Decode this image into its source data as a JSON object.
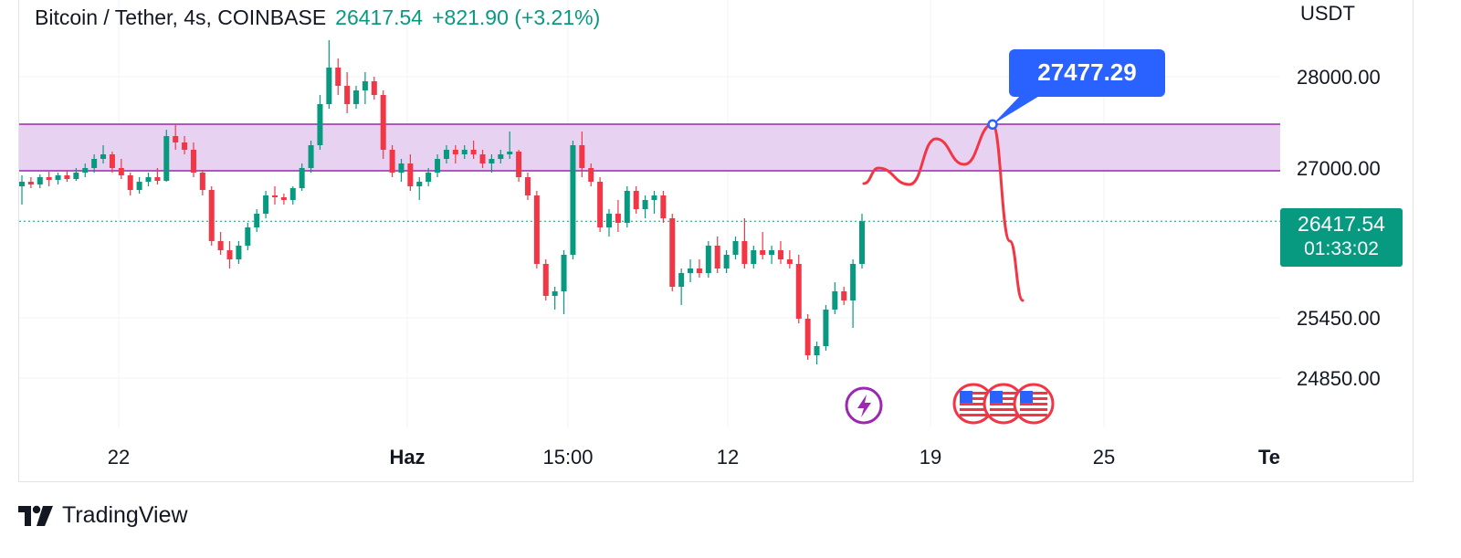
{
  "header": {
    "symbol": "Bitcoin / Tether, 4s, COINBASE",
    "last": "26417.54",
    "change": "+821.90 (+3.21%)"
  },
  "price_axis": {
    "unit": "USDT",
    "current_price": "26417.54",
    "countdown": "01:33:02"
  },
  "annotation": {
    "target_label": "27477.29"
  },
  "brand": {
    "name": "TradingView"
  },
  "colors": {
    "up": "#089981",
    "down": "#f23645",
    "zone_fill": "#e6cdf0",
    "zone_line": "#9c27b0",
    "projection": "#f23645",
    "callout": "#2962ff",
    "grid": "#f0f3fa"
  },
  "icons": [
    "lightning-icon",
    "us-flag-icon"
  ],
  "chart_data": {
    "type": "candlestick",
    "title": "Bitcoin / Tether, 4s, COINBASE",
    "ylabel": "USDT",
    "x_ticks": [
      "22",
      "Haz",
      "15:00",
      "12",
      "19",
      "25",
      "Te"
    ],
    "y_ticks": [
      28000.0,
      27000.0,
      25450.0,
      24850.0
    ],
    "ylim": [
      24200,
      28700
    ],
    "current_price": 26417.54,
    "zone": {
      "low": 26970,
      "high": 27480
    },
    "projection": {
      "points": [
        [
          0,
          26830
        ],
        [
          1,
          27000
        ],
        [
          2,
          26820
        ],
        [
          3,
          27320
        ],
        [
          4,
          27040
        ],
        [
          5,
          27477.29
        ],
        [
          6,
          26200
        ],
        [
          7,
          25550
        ]
      ],
      "target": 27477.29
    },
    "candles": [
      [
        26800,
        26920,
        26600,
        26850
      ],
      [
        26850,
        26900,
        26780,
        26820
      ],
      [
        26820,
        26930,
        26780,
        26900
      ],
      [
        26900,
        26960,
        26800,
        26870
      ],
      [
        26870,
        26950,
        26820,
        26920
      ],
      [
        26920,
        26980,
        26850,
        26880
      ],
      [
        26880,
        27000,
        26860,
        26950
      ],
      [
        26950,
        27050,
        26900,
        27000
      ],
      [
        27000,
        27150,
        26950,
        27100
      ],
      [
        27100,
        27250,
        27050,
        27150
      ],
      [
        27150,
        27180,
        26950,
        27000
      ],
      [
        27000,
        27100,
        26880,
        26920
      ],
      [
        26920,
        26950,
        26700,
        26760
      ],
      [
        26760,
        26900,
        26720,
        26850
      ],
      [
        26850,
        26950,
        26800,
        26900
      ],
      [
        26900,
        27000,
        26820,
        26860
      ],
      [
        26860,
        27420,
        26850,
        27350
      ],
      [
        27350,
        27480,
        27200,
        27280
      ],
      [
        27280,
        27350,
        27150,
        27200
      ],
      [
        27200,
        27280,
        26900,
        26950
      ],
      [
        26950,
        26980,
        26700,
        26760
      ],
      [
        26760,
        26800,
        26150,
        26200
      ],
      [
        26200,
        26300,
        26050,
        26100
      ],
      [
        26100,
        26200,
        25900,
        26000
      ],
      [
        26000,
        26200,
        25950,
        26150
      ],
      [
        26150,
        26400,
        26100,
        26350
      ],
      [
        26350,
        26550,
        26300,
        26500
      ],
      [
        26500,
        26750,
        26450,
        26700
      ],
      [
        26700,
        26800,
        26600,
        26680
      ],
      [
        26680,
        26720,
        26600,
        26650
      ],
      [
        26650,
        26800,
        26600,
        26780
      ],
      [
        26780,
        27050,
        26750,
        27000
      ],
      [
        27000,
        27300,
        26950,
        27250
      ],
      [
        27250,
        27800,
        27200,
        27700
      ],
      [
        27700,
        28400,
        27650,
        28100
      ],
      [
        28100,
        28200,
        27800,
        27900
      ],
      [
        27900,
        28050,
        27600,
        27700
      ],
      [
        27700,
        27900,
        27650,
        27850
      ],
      [
        27850,
        28050,
        27700,
        27950
      ],
      [
        27950,
        28000,
        27750,
        27800
      ],
      [
        27800,
        27850,
        27100,
        27200
      ],
      [
        27200,
        27250,
        26900,
        26950
      ],
      [
        26950,
        27100,
        26850,
        27050
      ],
      [
        27050,
        27150,
        26750,
        26800
      ],
      [
        26800,
        26900,
        26650,
        26850
      ],
      [
        26850,
        27000,
        26800,
        26950
      ],
      [
        26950,
        27150,
        26900,
        27100
      ],
      [
        27100,
        27250,
        27050,
        27200
      ],
      [
        27200,
        27250,
        27050,
        27150
      ],
      [
        27150,
        27250,
        27100,
        27200
      ],
      [
        27200,
        27300,
        27100,
        27150
      ],
      [
        27150,
        27200,
        27000,
        27050
      ],
      [
        27050,
        27150,
        26950,
        27100
      ],
      [
        27100,
        27200,
        27050,
        27150
      ],
      [
        27150,
        27400,
        27100,
        27180
      ],
      [
        27180,
        27200,
        26850,
        26900
      ],
      [
        26900,
        26950,
        26650,
        26700
      ],
      [
        26700,
        26750,
        25900,
        25950
      ],
      [
        25950,
        26000,
        25550,
        25600
      ],
      [
        25600,
        25700,
        25450,
        25650
      ],
      [
        25650,
        26100,
        25400,
        26050
      ],
      [
        26050,
        27300,
        26000,
        27250
      ],
      [
        27250,
        27400,
        26900,
        27000
      ],
      [
        27000,
        27050,
        26800,
        26850
      ],
      [
        26850,
        26900,
        26300,
        26350
      ],
      [
        26350,
        26550,
        26250,
        26500
      ],
      [
        26500,
        26650,
        26300,
        26400
      ],
      [
        26400,
        26800,
        26350,
        26750
      ],
      [
        26750,
        26800,
        26500,
        26550
      ],
      [
        26550,
        26700,
        26450,
        26650
      ],
      [
        26650,
        26750,
        26500,
        26700
      ],
      [
        26700,
        26750,
        26400,
        26450
      ],
      [
        26450,
        26500,
        25650,
        25700
      ],
      [
        25700,
        25900,
        25500,
        25850
      ],
      [
        25850,
        26000,
        25750,
        25900
      ],
      [
        25900,
        26000,
        25800,
        25850
      ],
      [
        25850,
        26200,
        25800,
        26150
      ],
      [
        26150,
        26250,
        25850,
        25900
      ],
      [
        25900,
        26100,
        25850,
        26050
      ],
      [
        26050,
        26250,
        26000,
        26200
      ],
      [
        26200,
        26450,
        25900,
        25950
      ],
      [
        25950,
        26150,
        25900,
        26100
      ],
      [
        26100,
        26300,
        26000,
        26050
      ],
      [
        26050,
        26150,
        25950,
        26100
      ],
      [
        26100,
        26200,
        25950,
        26000
      ],
      [
        26000,
        26100,
        25900,
        25950
      ],
      [
        25950,
        26050,
        25300,
        25350
      ],
      [
        25350,
        25400,
        24900,
        24950
      ],
      [
        24950,
        25100,
        24850,
        25050
      ],
      [
        25050,
        25500,
        25000,
        25450
      ],
      [
        25450,
        25750,
        25400,
        25650
      ],
      [
        25650,
        25700,
        25500,
        25550
      ],
      [
        25550,
        26000,
        25250,
        25950
      ],
      [
        25950,
        26500,
        25900,
        26417.54
      ]
    ]
  }
}
